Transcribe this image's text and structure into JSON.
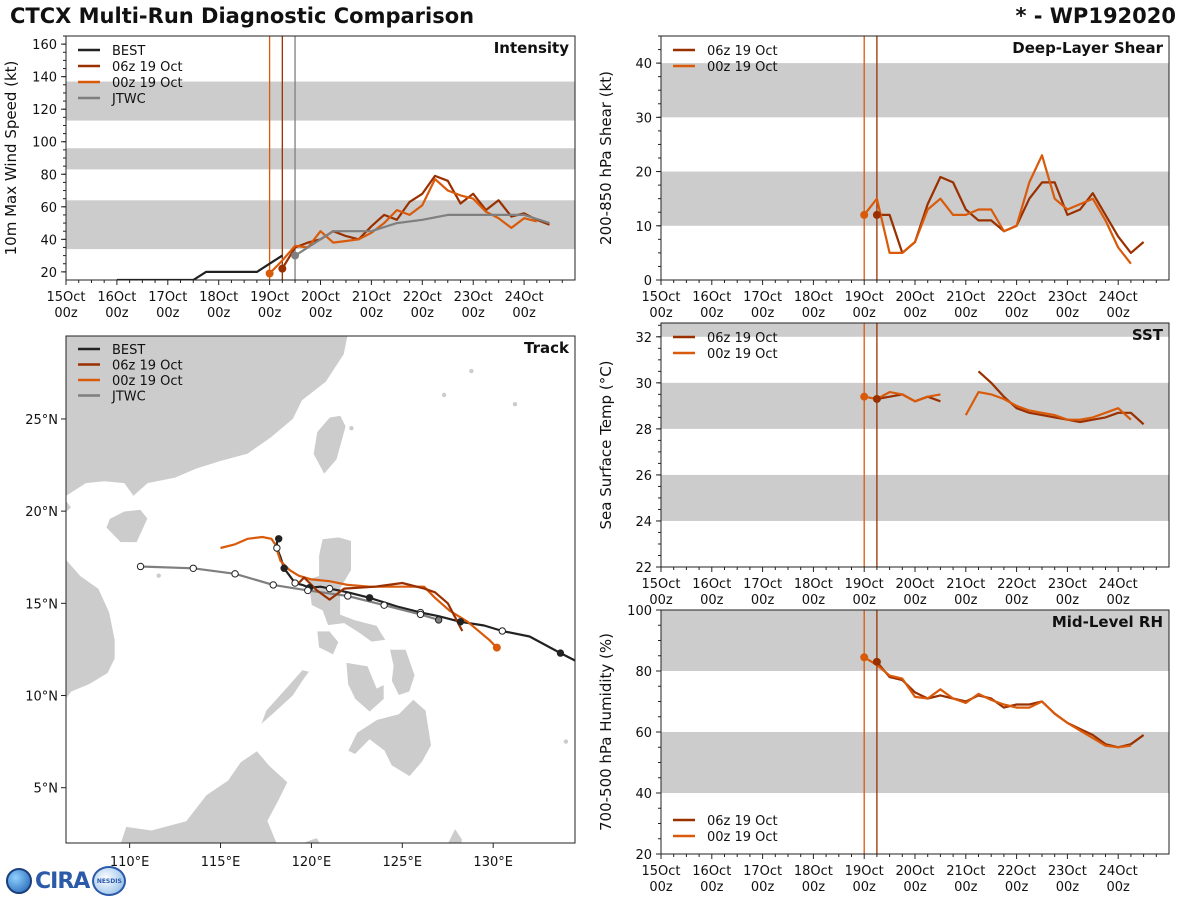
{
  "header": {
    "title": "CTCX Multi-Run Diagnostic Comparison",
    "storm": "* - WP192020"
  },
  "logo": {
    "text": "CIRA",
    "badge": "NESDIS"
  },
  "colors": {
    "best": "#222222",
    "run06": "#9a3000",
    "run00": "#d85a0a",
    "jtwc": "#7f7f7f",
    "band": "#cccccc",
    "land": "#cbcbcb"
  },
  "time_ticks": [
    "15Oct\n00z",
    "16Oct\n00z",
    "17Oct\n00z",
    "18Oct\n00z",
    "19Oct\n00z",
    "20Oct\n00z",
    "21Oct\n00z",
    "22Oct\n00z",
    "23Oct\n00z",
    "24Oct\n00z"
  ],
  "chart_data": [
    {
      "id": "intensity",
      "type": "line",
      "title": "Intensity",
      "ylabel": "10m Max Wind Speed (kt)",
      "xlabel": "",
      "xlim": [
        0,
        10
      ],
      "ylim": [
        15,
        165
      ],
      "yticks": [
        20,
        40,
        60,
        80,
        100,
        120,
        140,
        160
      ],
      "bands": [
        [
          34,
          64
        ],
        [
          83,
          96
        ],
        [
          113,
          137
        ]
      ],
      "vlines": [
        {
          "x": 4.0,
          "color": "run00"
        },
        {
          "x": 4.25,
          "color": "run06"
        },
        {
          "x": 4.5,
          "color": "jtwc"
        }
      ],
      "series": [
        {
          "name": "BEST",
          "color": "best",
          "x": [
            1,
            1.5,
            1.75,
            2,
            2.25,
            2.5,
            2.75,
            3,
            3.25,
            3.5,
            3.75,
            4,
            4.25
          ],
          "y": [
            15,
            15,
            15,
            15,
            15,
            15,
            20,
            20,
            20,
            20,
            20,
            25,
            30
          ]
        },
        {
          "name": "06z 19 Oct",
          "color": "run06",
          "x": [
            4.25,
            4.5,
            4.75,
            5,
            5.25,
            5.5,
            5.75,
            6,
            6.25,
            6.5,
            6.75,
            7,
            7.25,
            7.5,
            7.75,
            8,
            8.25,
            8.5,
            8.75,
            9,
            9.25,
            9.5
          ],
          "y": [
            22,
            35,
            38,
            40,
            45,
            42,
            40,
            48,
            55,
            52,
            63,
            68,
            79,
            76,
            62,
            68,
            58,
            64,
            54,
            56,
            52,
            49
          ]
        },
        {
          "name": "00z 19 Oct",
          "color": "run00",
          "x": [
            4,
            4.25,
            4.5,
            4.75,
            5,
            5.25,
            5.5,
            5.75,
            6,
            6.25,
            6.5,
            6.75,
            7,
            7.25,
            7.5,
            7.75,
            8,
            8.25,
            8.5,
            8.75,
            9,
            9.25
          ],
          "y": [
            19,
            27,
            36,
            35,
            45,
            38,
            39,
            40,
            44,
            50,
            58,
            55,
            61,
            77,
            70,
            67,
            65,
            57,
            53,
            47,
            53,
            51
          ]
        },
        {
          "name": "JTWC",
          "color": "jtwc",
          "x": [
            4.5,
            4.75,
            5,
            5.25,
            5.5,
            6,
            6.5,
            7,
            7.5,
            8,
            8.5,
            9,
            9.5
          ],
          "y": [
            30,
            35,
            40,
            45,
            45,
            45,
            50,
            52,
            55,
            55,
            55,
            55,
            50
          ]
        }
      ],
      "markers": [
        {
          "series": "run00",
          "x": 4.0,
          "y": 19
        },
        {
          "series": "run06",
          "x": 4.25,
          "y": 22
        },
        {
          "series": "jtwc",
          "x": 4.5,
          "y": 30
        }
      ],
      "legend": "top-left"
    },
    {
      "id": "track",
      "type": "line",
      "title": "Track",
      "xlabel": "",
      "ylabel": "",
      "xlim": [
        106.5,
        134.5
      ],
      "ylim": [
        2,
        29.5
      ],
      "xticks": [
        110,
        115,
        120,
        125,
        130
      ],
      "xticklabels": [
        "110°E",
        "115°E",
        "120°E",
        "125°E",
        "130°E"
      ],
      "yticks": [
        5,
        10,
        15,
        20,
        25
      ],
      "yticklabels": [
        "5°N",
        "10°N",
        "15°N",
        "20°N",
        "25°N"
      ],
      "series": [
        {
          "name": "BEST",
          "color": "best",
          "lon": [
            134.5,
            133.7,
            132,
            130.5,
            129.5,
            128.2,
            127,
            126,
            124.8,
            123.2,
            122,
            121,
            120.5,
            119.9,
            119.5,
            119.1,
            118.8,
            118.5,
            118.3,
            118.1,
            118.1,
            118.2,
            118.2
          ],
          "lat": [
            11.9,
            12.3,
            13.2,
            13.5,
            13.8,
            14.0,
            14.3,
            14.5,
            14.8,
            15.3,
            15.6,
            15.8,
            15.9,
            15.85,
            16.0,
            16.1,
            16.5,
            16.9,
            17.5,
            18.0,
            18.3,
            18.5,
            18.6
          ]
        },
        {
          "name": "06z 19 Oct",
          "color": "run06",
          "lon": [
            119.2,
            119.6,
            120.3,
            121.0,
            121.8,
            123.5,
            125.0,
            126.2,
            126.8,
            127.5,
            128.3
          ],
          "lat": [
            16.0,
            16.4,
            15.7,
            15.2,
            15.8,
            15.9,
            16.1,
            15.8,
            15.6,
            15.0,
            13.5
          ]
        },
        {
          "name": "00z 19 Oct",
          "color": "run00",
          "lon": [
            115.0,
            115.8,
            116.5,
            117.3,
            117.8,
            118.0,
            118.3,
            118.8,
            119.3,
            120.0,
            121.0,
            122.0,
            123.2,
            124.8,
            126.2,
            126.8,
            127.6,
            128.6,
            129.8,
            130.2
          ],
          "lat": [
            18.0,
            18.2,
            18.5,
            18.6,
            18.5,
            18.2,
            17.3,
            16.8,
            16.5,
            16.3,
            16.2,
            16.0,
            15.9,
            15.9,
            15.9,
            15.3,
            14.6,
            14.0,
            13.0,
            12.6
          ]
        },
        {
          "name": "JTWC",
          "color": "jtwc",
          "lon": [
            110.6,
            113.5,
            115.8,
            117.9,
            119.8,
            122.0,
            124.0,
            126.0,
            127.0
          ],
          "lat": [
            17.0,
            16.9,
            16.6,
            16.0,
            15.7,
            15.4,
            14.9,
            14.4,
            14.1
          ]
        }
      ],
      "legend": "top-left"
    },
    {
      "id": "shear",
      "type": "line",
      "title": "Deep-Layer Shear",
      "ylabel": "200-850 hPa Shear (kt)",
      "xlabel": "",
      "xlim": [
        0,
        10
      ],
      "ylim": [
        0,
        45
      ],
      "yticks": [
        0,
        10,
        20,
        30,
        40
      ],
      "bands": [
        [
          10,
          20
        ],
        [
          30,
          40
        ]
      ],
      "vlines": [
        {
          "x": 4.0,
          "color": "run00"
        },
        {
          "x": 4.25,
          "color": "run06"
        }
      ],
      "series": [
        {
          "name": "06z 19 Oct",
          "color": "run06",
          "x": [
            4.25,
            4.5,
            4.75,
            5,
            5.25,
            5.5,
            5.75,
            6,
            6.25,
            6.5,
            6.75,
            7,
            7.25,
            7.5,
            7.75,
            8,
            8.25,
            8.5,
            8.75,
            9,
            9.25,
            9.5
          ],
          "y": [
            12,
            12,
            5,
            7,
            14,
            19,
            18,
            13,
            11,
            11,
            9,
            10,
            15,
            18,
            18,
            12,
            13,
            16,
            12,
            8,
            5,
            7
          ]
        },
        {
          "name": "00z 19 Oct",
          "color": "run00",
          "x": [
            4,
            4.25,
            4.5,
            4.75,
            5,
            5.25,
            5.5,
            5.75,
            6,
            6.25,
            6.5,
            6.75,
            7,
            7.25,
            7.5,
            7.75,
            8,
            8.25,
            8.5,
            8.75,
            9,
            9.25
          ],
          "y": [
            12,
            15,
            5,
            5,
            7,
            13,
            15,
            12,
            12,
            13,
            13,
            9,
            10,
            18,
            23,
            15,
            13,
            14,
            15,
            11,
            6,
            3
          ]
        }
      ],
      "legend": "top-left"
    },
    {
      "id": "sst",
      "type": "line",
      "title": "SST",
      "ylabel": "Sea Surface Temp (°C)",
      "xlabel": "",
      "xlim": [
        0,
        10
      ],
      "ylim": [
        22,
        32.6
      ],
      "yticks": [
        22,
        24,
        26,
        28,
        30,
        32
      ],
      "bands": [
        [
          24,
          26
        ],
        [
          28,
          30
        ],
        [
          32,
          32.6
        ]
      ],
      "vlines": [
        {
          "x": 4.0,
          "color": "run00"
        },
        {
          "x": 4.25,
          "color": "run06"
        }
      ],
      "series": [
        {
          "name": "06z 19 Oct",
          "color": "run06",
          "x": [
            4.25,
            4.5,
            4.75,
            5,
            5.25,
            5.5
          ],
          "y": [
            29.3,
            29.4,
            29.5,
            29.2,
            29.4,
            29.2
          ]
        },
        {
          "name": "06z 19 Oct (b)",
          "color": "run06",
          "x": [
            6.25,
            6.5,
            6.75,
            7,
            7.25,
            7.5,
            7.75,
            8,
            8.25,
            8.5,
            8.75,
            9,
            9.25,
            9.5
          ],
          "y": [
            30.5,
            30.0,
            29.4,
            28.9,
            28.7,
            28.6,
            28.5,
            28.4,
            28.3,
            28.4,
            28.5,
            28.7,
            28.7,
            28.2
          ]
        },
        {
          "name": "00z 19 Oct",
          "color": "run00",
          "x": [
            4,
            4.25,
            4.5,
            4.75,
            5,
            5.25,
            5.5
          ],
          "y": [
            29.4,
            29.3,
            29.6,
            29.5,
            29.2,
            29.4,
            29.5
          ]
        },
        {
          "name": "00z 19 Oct (b)",
          "color": "run00",
          "x": [
            6,
            6.25,
            6.5,
            6.75,
            7,
            7.25,
            7.5,
            7.75,
            8,
            8.25,
            8.5,
            8.75,
            9,
            9.25
          ],
          "y": [
            28.6,
            29.6,
            29.5,
            29.3,
            29.0,
            28.8,
            28.7,
            28.6,
            28.4,
            28.4,
            28.5,
            28.7,
            28.9,
            28.4
          ]
        }
      ],
      "legend": "top-left"
    },
    {
      "id": "rh",
      "type": "line",
      "title": "Mid-Level RH",
      "ylabel": "700-500 hPa Humidity (%)",
      "xlabel": "",
      "xlim": [
        0,
        10
      ],
      "ylim": [
        20,
        100
      ],
      "yticks": [
        20,
        40,
        60,
        80,
        100
      ],
      "bands": [
        [
          40,
          60
        ],
        [
          80,
          100
        ]
      ],
      "vlines": [
        {
          "x": 4.0,
          "color": "run00"
        },
        {
          "x": 4.25,
          "color": "run06"
        }
      ],
      "series": [
        {
          "name": "06z 19 Oct",
          "color": "run06",
          "x": [
            4.25,
            4.5,
            4.75,
            5,
            5.25,
            5.5,
            5.75,
            6,
            6.25,
            6.5,
            6.75,
            7,
            7.25,
            7.5,
            7.75,
            8,
            8.25,
            8.5,
            8.75,
            9,
            9.25,
            9.5
          ],
          "y": [
            83,
            78,
            77,
            73,
            71,
            72,
            71,
            70,
            72,
            71,
            68,
            69,
            69,
            70,
            66,
            63,
            61,
            59,
            56,
            55,
            56,
            59
          ]
        },
        {
          "name": "00z 19 Oct",
          "color": "run00",
          "x": [
            4,
            4.25,
            4.5,
            4.75,
            5,
            5.25,
            5.5,
            5.75,
            6,
            6.25,
            6.5,
            6.75,
            7,
            7.25,
            7.5,
            7.75,
            8,
            8.25,
            8.5,
            8.75,
            9,
            9.25
          ],
          "y": [
            84.5,
            82,
            78.5,
            77.5,
            71.5,
            71,
            74,
            71,
            69.5,
            72.5,
            70.5,
            69,
            68,
            68,
            70,
            66,
            63,
            60.5,
            58,
            55.5,
            55,
            55.5
          ]
        }
      ],
      "legend": "bottom-left"
    }
  ],
  "legend_labels": {
    "best": "BEST",
    "run06": "06z 19 Oct",
    "run00": "00z 19 Oct",
    "jtwc": "JTWC"
  }
}
